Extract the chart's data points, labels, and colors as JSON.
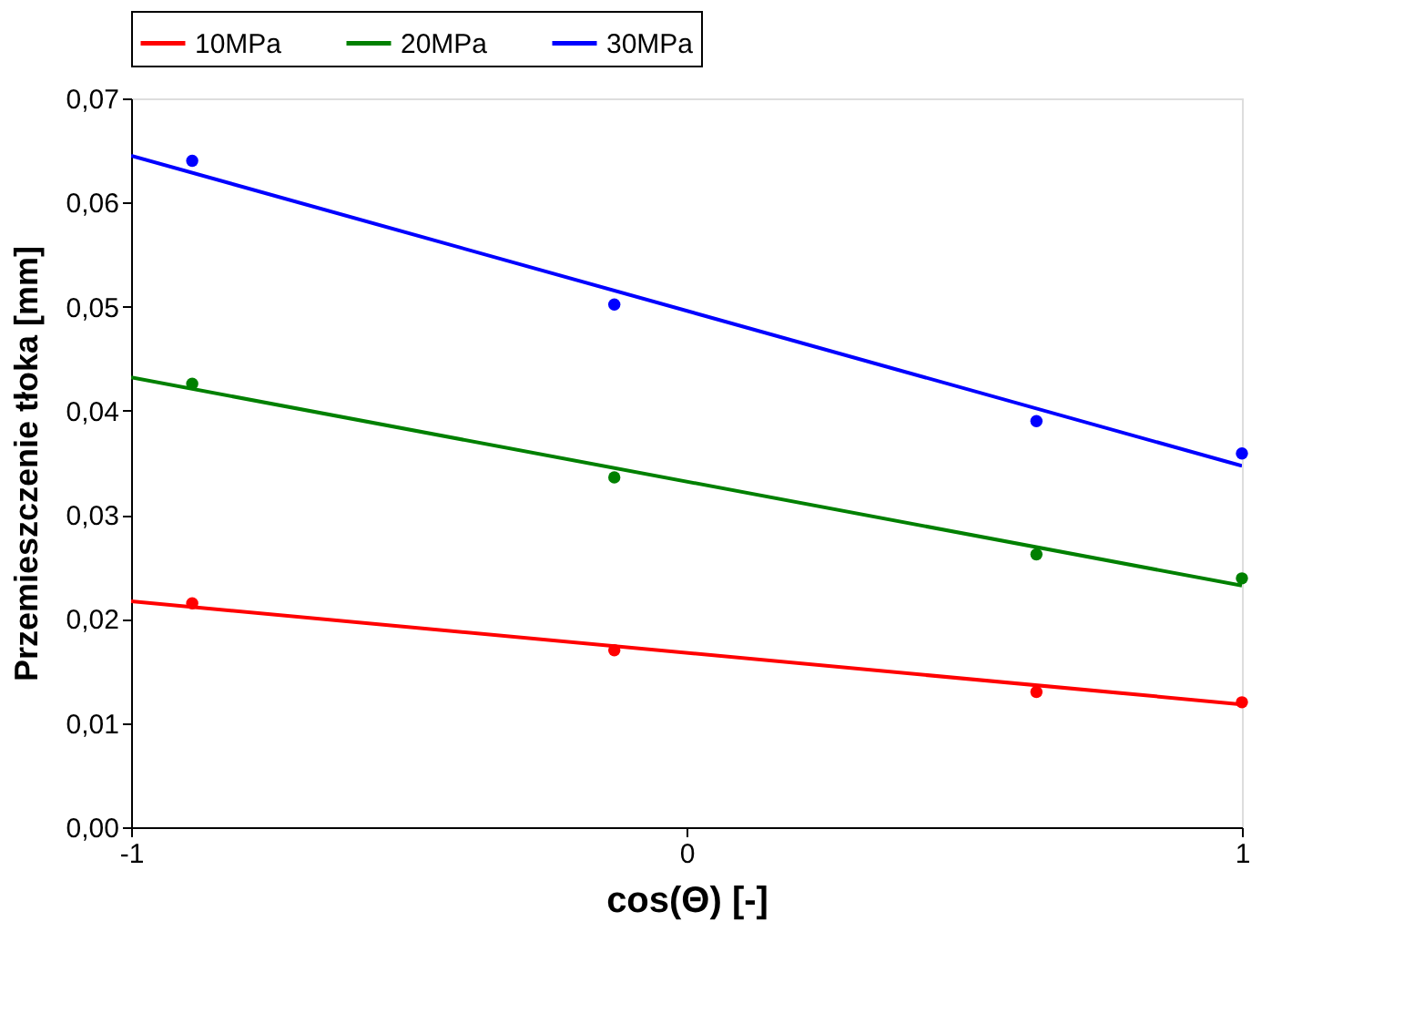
{
  "chart_data": {
    "type": "scatter",
    "xlabel": "cos(Θ) [-]",
    "ylabel": "Przemieszczenie tłoka [mm]",
    "xlim": [
      -1,
      1
    ],
    "xticks": [
      {
        "value": -1,
        "label": "-1"
      },
      {
        "value": 0,
        "label": "0"
      },
      {
        "value": 1,
        "label": "1"
      }
    ],
    "ylim": [
      0,
      0.07
    ],
    "yticks": [
      {
        "value": 0,
        "label": "0,00"
      },
      {
        "value": 0.01,
        "label": "0,01"
      },
      {
        "value": 0.02,
        "label": "0,02"
      },
      {
        "value": 0.03,
        "label": "0,03"
      },
      {
        "value": 0.04,
        "label": "0,04"
      },
      {
        "value": 0.05,
        "label": "0,05"
      },
      {
        "value": 0.06,
        "label": "0,06"
      },
      {
        "value": 0.07,
        "label": "0,07"
      }
    ],
    "grid": false,
    "legend": "top",
    "marker": "circle",
    "line_style": "solid",
    "series": [
      {
        "type": "line",
        "marker": "none",
        "name": "10MPa",
        "color": "#ff0000",
        "x": [
          -1,
          1
        ],
        "values": [
          0.0217,
          0.0118
        ]
      },
      {
        "type": "line",
        "marker": "none",
        "name": "20MPa",
        "color": "#008000",
        "x": [
          -1,
          1
        ],
        "values": [
          0.0432,
          0.0232
        ]
      },
      {
        "type": "line",
        "marker": "none",
        "name": "30MPa",
        "color": "#0000ff",
        "x": [
          -1,
          1
        ],
        "values": [
          0.0645,
          0.0347
        ]
      },
      {
        "color": "#ff0000",
        "x": [
          -0.89,
          -0.13,
          0.63,
          1
        ],
        "values": [
          0.0215,
          0.017,
          0.013,
          0.012
        ]
      },
      {
        "color": "#008000",
        "x": [
          -0.89,
          -0.13,
          0.63,
          1
        ],
        "values": [
          0.0426,
          0.0336,
          0.0262,
          0.0239
        ]
      },
      {
        "color": "#0000ff",
        "x": [
          -0.89,
          -0.13,
          0.63,
          1
        ],
        "values": [
          0.064,
          0.0502,
          0.039,
          0.0359
        ]
      }
    ]
  }
}
